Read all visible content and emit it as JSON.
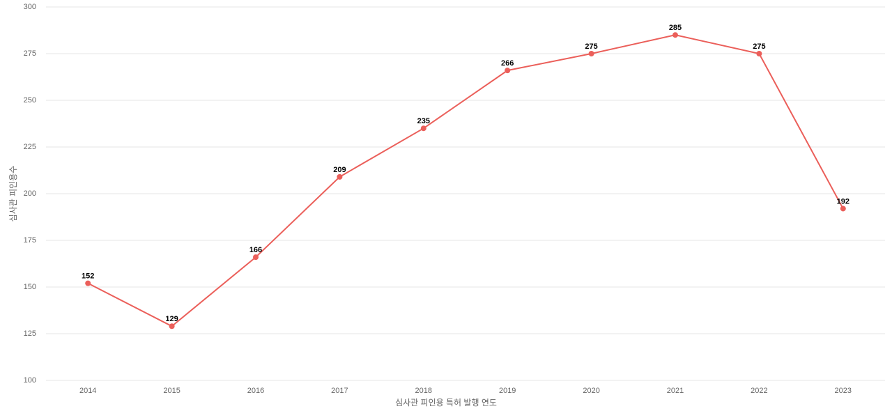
{
  "chart_data": {
    "type": "line",
    "x_label": "심사관 피인용 특허 발행 연도",
    "y_label": "심사관 피인용수",
    "categories": [
      "2014",
      "2015",
      "2016",
      "2017",
      "2018",
      "2019",
      "2020",
      "2021",
      "2022",
      "2023"
    ],
    "values": [
      152,
      129,
      166,
      209,
      235,
      266,
      275,
      285,
      275,
      192
    ],
    "color": "#eb5f5a",
    "ylim": [
      100,
      300
    ],
    "yticks": [
      100,
      125,
      150,
      175,
      200,
      225,
      250,
      275,
      300
    ],
    "grid": true
  }
}
